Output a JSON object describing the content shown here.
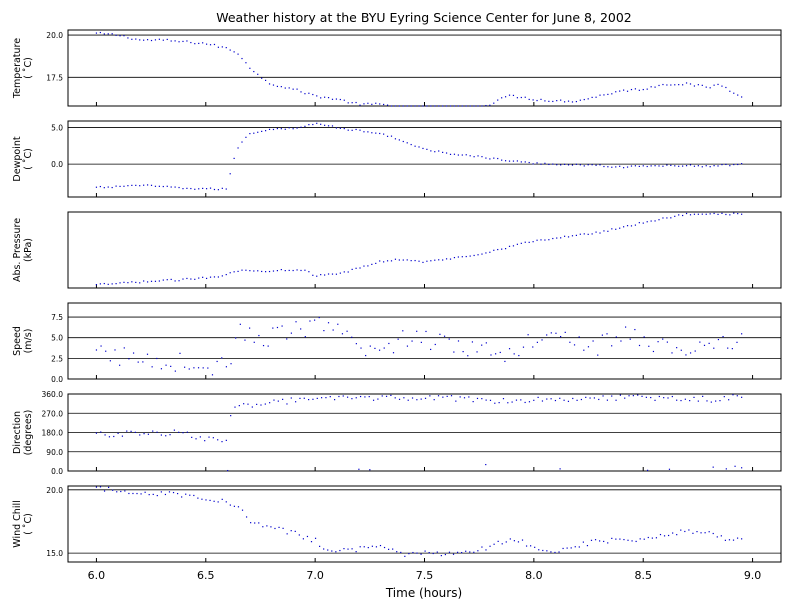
{
  "title": "Weather history at the BYU Eyring Science Center for June 8, 2002",
  "x_axis": {
    "label": "Time (hours)",
    "range": [
      5.87,
      9.13
    ],
    "ticks": [
      6.0,
      6.5,
      7.0,
      7.5,
      8.0,
      8.5,
      9.0
    ],
    "tick_labels": [
      "6.0",
      "6.5",
      "7.0",
      "7.5",
      "8.0",
      "8.5",
      "9.0"
    ]
  },
  "colors": {
    "points": "#0000cc",
    "gridline": "#000000",
    "frame": "#000000"
  },
  "chart_data": [
    {
      "type": "scatter",
      "ylabel_lines": [
        "Temperature",
        "( ˚C)"
      ],
      "ylim": [
        15.8,
        20.3
      ],
      "yticks": [
        17.5,
        20.0
      ],
      "ytick_labels": [
        "17.5",
        "20.0"
      ],
      "gridlines": [
        17.5,
        20.0
      ],
      "series_profile": [
        [
          6.0,
          20.1
        ],
        [
          6.1,
          20.0
        ],
        [
          6.2,
          19.7
        ],
        [
          6.3,
          19.7
        ],
        [
          6.4,
          19.6
        ],
        [
          6.5,
          19.5
        ],
        [
          6.6,
          19.2
        ],
        [
          6.65,
          18.9
        ],
        [
          6.72,
          17.8
        ],
        [
          6.8,
          17.1
        ],
        [
          6.9,
          16.8
        ],
        [
          7.0,
          16.4
        ],
        [
          7.1,
          16.2
        ],
        [
          7.2,
          15.9
        ],
        [
          7.3,
          15.9
        ],
        [
          7.4,
          15.7
        ],
        [
          7.5,
          15.6
        ],
        [
          7.6,
          15.6
        ],
        [
          7.7,
          15.6
        ],
        [
          7.8,
          15.9
        ],
        [
          7.85,
          16.3
        ],
        [
          7.9,
          16.4
        ],
        [
          8.0,
          16.2
        ],
        [
          8.1,
          16.1
        ],
        [
          8.2,
          16.1
        ],
        [
          8.3,
          16.4
        ],
        [
          8.4,
          16.7
        ],
        [
          8.5,
          16.8
        ],
        [
          8.6,
          17.1
        ],
        [
          8.7,
          17.1
        ],
        [
          8.8,
          16.9
        ],
        [
          8.85,
          17.1
        ],
        [
          8.9,
          16.7
        ],
        [
          8.95,
          16.4
        ]
      ],
      "x_start": 6.0,
      "x_end": 8.95,
      "samples": 165,
      "noise": 0.07
    },
    {
      "type": "scatter",
      "ylabel_lines": [
        "Dewpoint",
        "( ˚C)"
      ],
      "ylim": [
        -4.5,
        5.9
      ],
      "yticks": [
        0.0,
        5.0
      ],
      "ytick_labels": [
        "0.0",
        "5.0"
      ],
      "gridlines": [
        0.0,
        5.0
      ],
      "series_profile": [
        [
          6.0,
          -3.2
        ],
        [
          6.1,
          -3.1
        ],
        [
          6.15,
          -2.9
        ],
        [
          6.2,
          -2.9
        ],
        [
          6.3,
          -3.1
        ],
        [
          6.4,
          -3.3
        ],
        [
          6.5,
          -3.4
        ],
        [
          6.6,
          -3.4
        ],
        [
          6.62,
          0.0
        ],
        [
          6.65,
          2.5
        ],
        [
          6.7,
          4.2
        ],
        [
          6.8,
          4.8
        ],
        [
          6.9,
          4.9
        ],
        [
          7.0,
          5.5
        ],
        [
          7.05,
          5.4
        ],
        [
          7.1,
          4.9
        ],
        [
          7.2,
          4.6
        ],
        [
          7.3,
          4.1
        ],
        [
          7.35,
          3.8
        ],
        [
          7.45,
          2.5
        ],
        [
          7.5,
          2.0
        ],
        [
          7.6,
          1.5
        ],
        [
          7.7,
          1.2
        ],
        [
          7.8,
          0.8
        ],
        [
          7.9,
          0.4
        ],
        [
          8.0,
          0.1
        ],
        [
          8.1,
          0.0
        ],
        [
          8.2,
          -0.1
        ],
        [
          8.3,
          -0.2
        ],
        [
          8.4,
          -0.4
        ],
        [
          8.5,
          -0.3
        ],
        [
          8.6,
          -0.2
        ],
        [
          8.7,
          -0.2
        ],
        [
          8.8,
          -0.3
        ],
        [
          8.9,
          -0.1
        ],
        [
          8.95,
          0.0
        ]
      ],
      "x_start": 6.0,
      "x_end": 8.95,
      "samples": 165,
      "noise": 0.12
    },
    {
      "type": "scatter",
      "ylabel_lines": [
        "Abs. Pressure",
        "(kPa)"
      ],
      "ylim": [
        0.0,
        1.0
      ],
      "yticks": [],
      "ytick_labels": [],
      "gridlines": [],
      "series_profile": [
        [
          6.0,
          0.04
        ],
        [
          6.2,
          0.08
        ],
        [
          6.4,
          0.11
        ],
        [
          6.55,
          0.15
        ],
        [
          6.65,
          0.23
        ],
        [
          6.75,
          0.22
        ],
        [
          6.85,
          0.24
        ],
        [
          6.95,
          0.24
        ],
        [
          7.0,
          0.16
        ],
        [
          7.1,
          0.18
        ],
        [
          7.2,
          0.26
        ],
        [
          7.3,
          0.35
        ],
        [
          7.4,
          0.38
        ],
        [
          7.5,
          0.34
        ],
        [
          7.6,
          0.38
        ],
        [
          7.7,
          0.42
        ],
        [
          7.8,
          0.48
        ],
        [
          7.9,
          0.55
        ],
        [
          8.0,
          0.62
        ],
        [
          8.1,
          0.65
        ],
        [
          8.2,
          0.7
        ],
        [
          8.3,
          0.73
        ],
        [
          8.4,
          0.8
        ],
        [
          8.5,
          0.86
        ],
        [
          8.6,
          0.92
        ],
        [
          8.7,
          0.97
        ],
        [
          8.8,
          0.98
        ],
        [
          8.95,
          0.97
        ]
      ],
      "x_start": 6.0,
      "x_end": 8.95,
      "samples": 165,
      "noise": 0.012
    },
    {
      "type": "scatter",
      "ylabel_lines": [
        "Speed",
        "(m/s)"
      ],
      "ylim": [
        0.0,
        9.2
      ],
      "yticks": [
        0.0,
        2.5,
        5.0,
        7.5
      ],
      "ytick_labels": [
        "0.0",
        "2.5",
        "5.0",
        "7.5"
      ],
      "gridlines": [
        2.5,
        5.0,
        7.5
      ],
      "series_profile": [
        [
          6.0,
          3.0
        ],
        [
          6.2,
          2.5
        ],
        [
          6.4,
          2.0
        ],
        [
          6.5,
          1.2
        ],
        [
          6.6,
          1.8
        ],
        [
          6.65,
          5.5
        ],
        [
          6.8,
          5.0
        ],
        [
          7.0,
          6.5
        ],
        [
          7.1,
          5.5
        ],
        [
          7.2,
          4.0
        ],
        [
          7.3,
          3.2
        ],
        [
          7.4,
          5.0
        ],
        [
          7.6,
          4.5
        ],
        [
          7.8,
          3.5
        ],
        [
          7.9,
          3.2
        ],
        [
          8.0,
          5.0
        ],
        [
          8.1,
          6.5
        ],
        [
          8.2,
          4.5
        ],
        [
          8.3,
          4.0
        ],
        [
          8.4,
          5.5
        ],
        [
          8.5,
          4.5
        ],
        [
          8.6,
          4.0
        ],
        [
          8.7,
          3.5
        ],
        [
          8.8,
          3.5
        ],
        [
          8.95,
          5.0
        ]
      ],
      "x_start": 6.0,
      "x_end": 8.95,
      "samples": 140,
      "noise": 1.2
    },
    {
      "type": "scatter",
      "ylabel_lines": [
        "Direction",
        "(degrees)"
      ],
      "ylim": [
        0.0,
        360.0
      ],
      "yticks": [
        0.0,
        90.0,
        180.0,
        270.0,
        360.0
      ],
      "ytick_labels": [
        "0.0",
        "90.0",
        "180.0",
        "270.0",
        "360.0"
      ],
      "gridlines": [
        90.0,
        180.0,
        270.0,
        360.0
      ],
      "series_profile": [
        [
          6.0,
          170
        ],
        [
          6.2,
          175
        ],
        [
          6.4,
          180
        ],
        [
          6.5,
          150
        ],
        [
          6.6,
          130
        ],
        [
          6.62,
          300
        ],
        [
          6.8,
          325
        ],
        [
          7.0,
          330
        ],
        [
          7.2,
          345
        ],
        [
          7.4,
          340
        ],
        [
          7.6,
          340
        ],
        [
          7.8,
          330
        ],
        [
          8.0,
          335
        ],
        [
          8.2,
          340
        ],
        [
          8.4,
          345
        ],
        [
          8.6,
          340
        ],
        [
          8.8,
          335
        ],
        [
          8.95,
          350
        ]
      ],
      "x_start": 6.0,
      "x_end": 8.95,
      "samples": 150,
      "noise": 14,
      "outliers": [
        [
          6.6,
          2
        ],
        [
          7.2,
          8
        ],
        [
          7.25,
          6
        ],
        [
          7.78,
          30
        ],
        [
          8.12,
          10
        ],
        [
          8.52,
          3
        ],
        [
          8.62,
          8
        ],
        [
          8.82,
          18
        ],
        [
          8.88,
          10
        ],
        [
          8.92,
          22
        ],
        [
          8.95,
          15
        ]
      ]
    },
    {
      "type": "scatter",
      "ylabel_lines": [
        "Wind Chill",
        "( ˚C)"
      ],
      "ylim": [
        14.3,
        20.3
      ],
      "yticks": [
        15.0,
        20.0
      ],
      "ytick_labels": [
        "15.0",
        "20.0"
      ],
      "gridlines": [
        15.0,
        20.0
      ],
      "series_profile": [
        [
          6.0,
          20.1
        ],
        [
          6.2,
          19.8
        ],
        [
          6.4,
          19.6
        ],
        [
          6.5,
          19.4
        ],
        [
          6.6,
          19.0
        ],
        [
          6.65,
          18.6
        ],
        [
          6.7,
          17.5
        ],
        [
          6.8,
          17.0
        ],
        [
          6.9,
          16.6
        ],
        [
          7.0,
          16.0
        ],
        [
          7.05,
          15.3
        ],
        [
          7.2,
          15.3
        ],
        [
          7.3,
          15.7
        ],
        [
          7.4,
          14.8
        ],
        [
          7.5,
          15.0
        ],
        [
          7.6,
          14.9
        ],
        [
          7.7,
          15.0
        ],
        [
          7.8,
          15.5
        ],
        [
          7.9,
          16.2
        ],
        [
          8.0,
          15.5
        ],
        [
          8.1,
          15.2
        ],
        [
          8.2,
          15.6
        ],
        [
          8.3,
          16.0
        ],
        [
          8.4,
          16.0
        ],
        [
          8.5,
          16.1
        ],
        [
          8.6,
          16.5
        ],
        [
          8.7,
          16.8
        ],
        [
          8.8,
          16.6
        ],
        [
          8.9,
          16.0
        ],
        [
          8.95,
          16.3
        ]
      ],
      "x_start": 6.0,
      "x_end": 8.95,
      "samples": 160,
      "noise": 0.2
    }
  ]
}
